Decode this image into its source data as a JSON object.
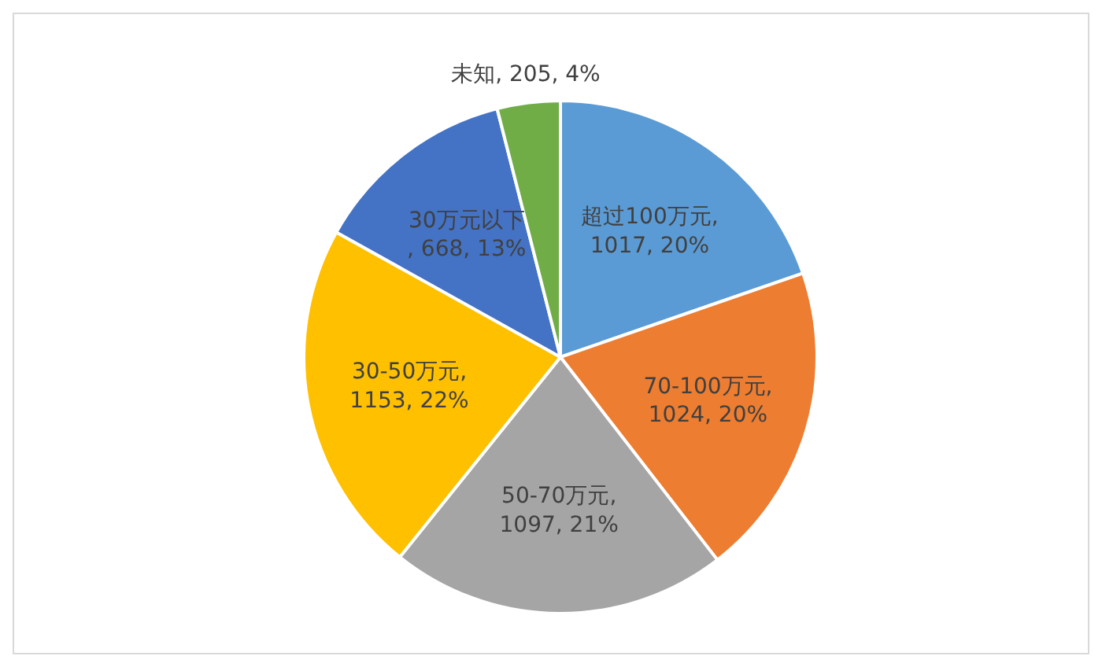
{
  "chart_data": {
    "type": "pie",
    "categories": [
      "超过100万元",
      "70-100万元",
      "50-70万元",
      "30-50万元",
      "30万元以下",
      "未知"
    ],
    "values": [
      1017,
      1024,
      1097,
      1153,
      668,
      205
    ],
    "colors": [
      "#5b9bd5",
      "#ed7d31",
      "#a5a5a5",
      "#ffc000",
      "#4472c4",
      "#70ad47"
    ],
    "value_labels": [
      ", 1017, 20%",
      ", 1024, 20%",
      ", 1097, 21%",
      ", 1153, 22%",
      ", 668, 13%",
      ", 205, 4%"
    ],
    "legend": false
  }
}
